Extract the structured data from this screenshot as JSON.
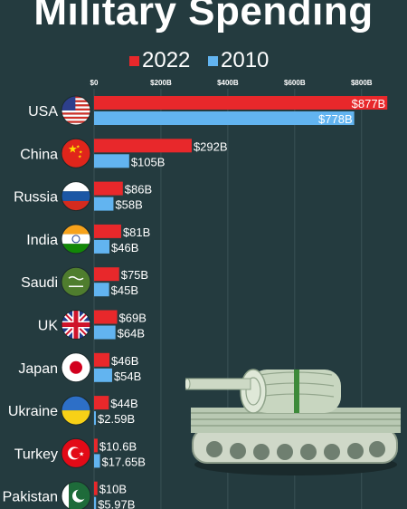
{
  "chart_data": {
    "type": "bar",
    "orientation": "horizontal",
    "title": "Military Spending",
    "categories": [
      "USA",
      "China",
      "Russia",
      "India",
      "Saudi",
      "UK",
      "Japan",
      "Ukraine",
      "Turkey",
      "Pakistan"
    ],
    "series": [
      {
        "name": "2022",
        "color": "#e8282b",
        "values": [
          877,
          292,
          86,
          81,
          75,
          69,
          46,
          44,
          10.6,
          10
        ],
        "labels": [
          "$877B",
          "$292B",
          "$86B",
          "$81B",
          "$75B",
          "$69B",
          "$46B",
          "$44B",
          "$10.6B",
          "$10B"
        ]
      },
      {
        "name": "2010",
        "color": "#62b4f0",
        "values": [
          778,
          105,
          58,
          46,
          45,
          64,
          54,
          2.59,
          17.65,
          5.97
        ],
        "labels": [
          "$778B",
          "$105B",
          "$58B",
          "$46B",
          "$45B",
          "$64B",
          "$54B",
          "$2.59B",
          "$17.65B",
          "$5.97B"
        ]
      }
    ],
    "xlim": [
      0,
      900
    ],
    "xticks": [
      0,
      200,
      400,
      600,
      800
    ],
    "xtick_labels": [
      "$0",
      "$200B",
      "$400B",
      "$600B",
      "$800B"
    ],
    "grid": true,
    "legend_position": "top"
  },
  "flags": [
    "usa-flag",
    "china-flag",
    "russia-flag",
    "india-flag",
    "saudi-flag",
    "uk-flag",
    "japan-flag",
    "ukraine-flag",
    "turkey-flag",
    "pakistan-flag"
  ],
  "illustration": "money-tank"
}
